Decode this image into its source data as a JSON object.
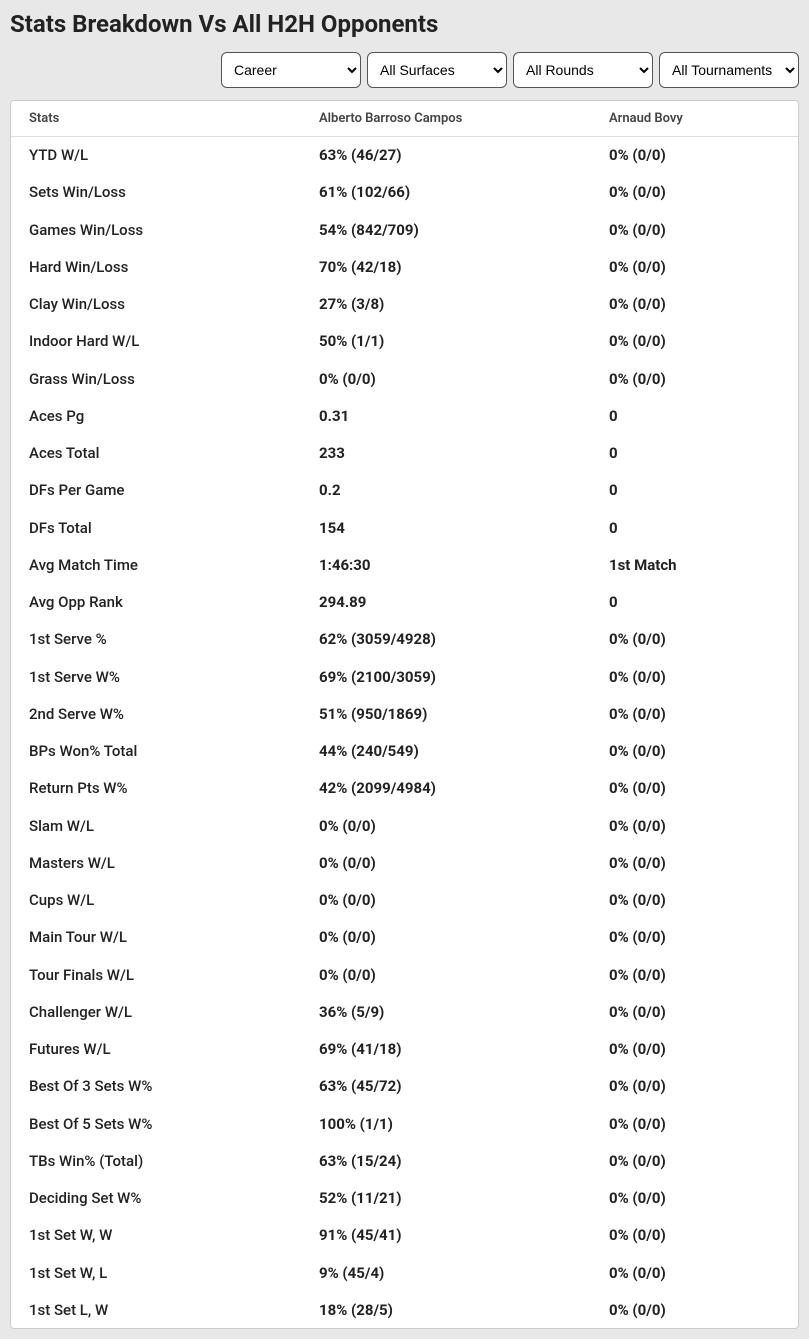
{
  "title": "Stats Breakdown Vs All H2H Opponents",
  "filters": {
    "career": "Career",
    "surfaces": "All Surfaces",
    "rounds": "All Rounds",
    "tournaments": "All Tournaments"
  },
  "table": {
    "headers": {
      "stats": "Stats",
      "player1": "Alberto Barroso Campos",
      "player2": "Arnaud Bovy"
    },
    "rows": [
      {
        "stat": "YTD W/L",
        "p1": "63% (46/27)",
        "p2": "0% (0/0)"
      },
      {
        "stat": "Sets Win/Loss",
        "p1": "61% (102/66)",
        "p2": "0% (0/0)"
      },
      {
        "stat": "Games Win/Loss",
        "p1": "54% (842/709)",
        "p2": "0% (0/0)"
      },
      {
        "stat": "Hard Win/Loss",
        "p1": "70% (42/18)",
        "p2": "0% (0/0)"
      },
      {
        "stat": "Clay Win/Loss",
        "p1": "27% (3/8)",
        "p2": "0% (0/0)"
      },
      {
        "stat": "Indoor Hard W/L",
        "p1": "50% (1/1)",
        "p2": "0% (0/0)"
      },
      {
        "stat": "Grass Win/Loss",
        "p1": "0% (0/0)",
        "p2": "0% (0/0)"
      },
      {
        "stat": "Aces Pg",
        "p1": "0.31",
        "p2": "0"
      },
      {
        "stat": "Aces Total",
        "p1": "233",
        "p2": "0"
      },
      {
        "stat": "DFs Per Game",
        "p1": "0.2",
        "p2": "0"
      },
      {
        "stat": "DFs Total",
        "p1": "154",
        "p2": "0"
      },
      {
        "stat": "Avg Match Time",
        "p1": "1:46:30",
        "p2": "1st Match"
      },
      {
        "stat": "Avg Opp Rank",
        "p1": "294.89",
        "p2": "0"
      },
      {
        "stat": "1st Serve %",
        "p1": "62% (3059/4928)",
        "p2": "0% (0/0)"
      },
      {
        "stat": "1st Serve W%",
        "p1": "69% (2100/3059)",
        "p2": "0% (0/0)"
      },
      {
        "stat": "2nd Serve W%",
        "p1": "51% (950/1869)",
        "p2": "0% (0/0)"
      },
      {
        "stat": "BPs Won% Total",
        "p1": "44% (240/549)",
        "p2": "0% (0/0)"
      },
      {
        "stat": "Return Pts W%",
        "p1": "42% (2099/4984)",
        "p2": "0% (0/0)"
      },
      {
        "stat": "Slam W/L",
        "p1": "0% (0/0)",
        "p2": "0% (0/0)"
      },
      {
        "stat": "Masters W/L",
        "p1": "0% (0/0)",
        "p2": "0% (0/0)"
      },
      {
        "stat": "Cups W/L",
        "p1": "0% (0/0)",
        "p2": "0% (0/0)"
      },
      {
        "stat": "Main Tour W/L",
        "p1": "0% (0/0)",
        "p2": "0% (0/0)"
      },
      {
        "stat": "Tour Finals W/L",
        "p1": "0% (0/0)",
        "p2": "0% (0/0)"
      },
      {
        "stat": "Challenger W/L",
        "p1": "36% (5/9)",
        "p2": "0% (0/0)"
      },
      {
        "stat": "Futures W/L",
        "p1": "69% (41/18)",
        "p2": "0% (0/0)"
      },
      {
        "stat": "Best Of 3 Sets W%",
        "p1": "63% (45/72)",
        "p2": "0% (0/0)"
      },
      {
        "stat": "Best Of 5 Sets W%",
        "p1": "100% (1/1)",
        "p2": "0% (0/0)"
      },
      {
        "stat": "TBs Win% (Total)",
        "p1": "63% (15/24)",
        "p2": "0% (0/0)"
      },
      {
        "stat": "Deciding Set W%",
        "p1": "52% (11/21)",
        "p2": "0% (0/0)"
      },
      {
        "stat": "1st Set W, W",
        "p1": "91% (45/41)",
        "p2": "0% (0/0)"
      },
      {
        "stat": "1st Set W, L",
        "p1": "9% (45/4)",
        "p2": "0% (0/0)"
      },
      {
        "stat": "1st Set L, W",
        "p1": "18% (28/5)",
        "p2": "0% (0/0)"
      }
    ]
  }
}
